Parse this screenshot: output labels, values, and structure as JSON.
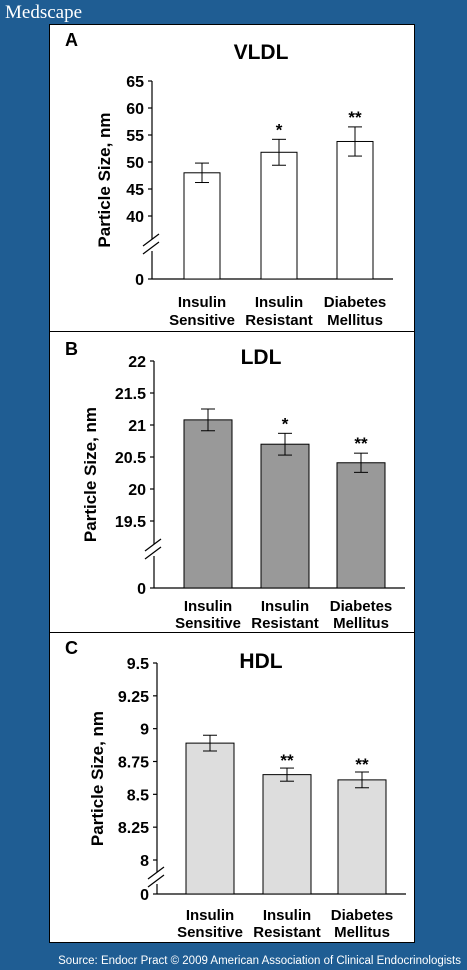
{
  "site_name": "Medscape",
  "source_text": "Source: Endocr Pract © 2009 American Association of Clinical Endocrinologists",
  "chart_data": [
    {
      "type": "bar",
      "panel_letter": "A",
      "title": "VLDL",
      "ylabel": "Particle Size, nm",
      "categories": [
        [
          "Insulin",
          "Sensitive"
        ],
        [
          "Insulin",
          "Resistant"
        ],
        [
          "Diabetes",
          "Mellitus"
        ]
      ],
      "values": [
        48.0,
        51.8,
        53.8
      ],
      "errors": [
        1.8,
        2.4,
        2.7
      ],
      "significance": [
        "",
        "*",
        "**"
      ],
      "yticks": [
        40,
        45,
        50,
        55,
        60,
        65
      ],
      "ytick_labels": [
        "40",
        "45",
        "50",
        "55",
        "60",
        "65"
      ],
      "ylim": [
        40,
        65
      ],
      "baseline_label": "0",
      "axis_break": true,
      "bar_color": "#ffffff"
    },
    {
      "type": "bar",
      "panel_letter": "B",
      "title": "LDL",
      "ylabel": "Particle Size, nm",
      "categories": [
        [
          "Insulin",
          "Sensitive"
        ],
        [
          "Insulin",
          "Resistant"
        ],
        [
          "Diabetes",
          "Mellitus"
        ]
      ],
      "values": [
        21.08,
        20.7,
        20.41
      ],
      "errors": [
        0.17,
        0.17,
        0.15
      ],
      "significance": [
        "",
        "*",
        "**"
      ],
      "yticks": [
        19.5,
        20,
        20.5,
        21,
        21.5,
        22
      ],
      "ytick_labels": [
        "19.5",
        "20",
        "20.5",
        "21",
        "21.5",
        "22"
      ],
      "ylim": [
        19.5,
        22
      ],
      "baseline_label": "0",
      "axis_break": true,
      "bar_color": "#999999"
    },
    {
      "type": "bar",
      "panel_letter": "C",
      "title": "HDL",
      "ylabel": "Particle Size, nm",
      "categories": [
        [
          "Insulin",
          "Sensitive"
        ],
        [
          "Insulin",
          "Resistant"
        ],
        [
          "Diabetes",
          "Mellitus"
        ]
      ],
      "values": [
        8.89,
        8.65,
        8.61
      ],
      "errors": [
        0.06,
        0.05,
        0.06
      ],
      "significance": [
        "",
        "**",
        "**"
      ],
      "yticks": [
        8,
        8.25,
        8.5,
        8.75,
        9,
        9.25,
        9.5
      ],
      "ytick_labels": [
        "8",
        "8.25",
        "8.5",
        "8.75",
        "9",
        "9.25",
        "9.5"
      ],
      "ylim": [
        8,
        9.5
      ],
      "baseline_label": "0",
      "axis_break": true,
      "bar_color": "#dddddd"
    }
  ]
}
